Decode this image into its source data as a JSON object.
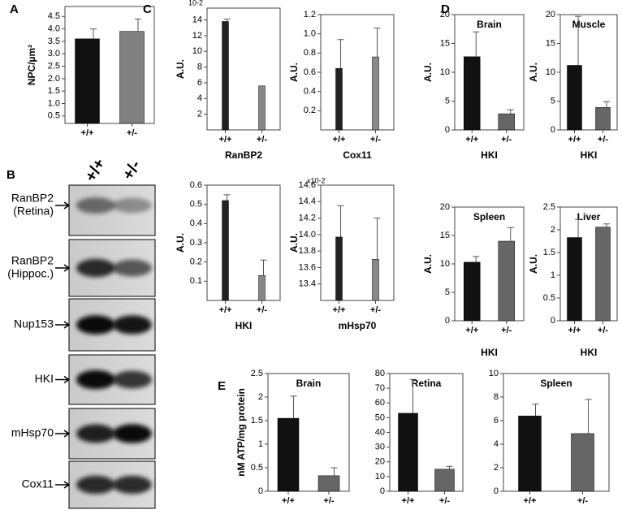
{
  "chart_data": [
    {
      "type": "bar",
      "panel": "A",
      "ylabel": "NPC/µm²",
      "categories": [
        "+/+",
        "+/-"
      ],
      "values": [
        3.6,
        3.9
      ],
      "errors": [
        0.4,
        0.5
      ],
      "colors": [
        "#111111",
        "#808080"
      ],
      "ylim": [
        0.2,
        4.9
      ],
      "yticks": [
        0.5,
        {
          "value": 1,
          "label": "1.0"
        },
        1.5,
        {
          "value": 2,
          "label": "2.0"
        },
        2.5,
        {
          "value": 3,
          "label": "3.0"
        },
        3.5,
        {
          "value": 4,
          "label": "4.0"
        },
        4.5
      ]
    },
    {
      "type": "bar",
      "panel": "C",
      "multiplier": "10-2",
      "ylabel": "A.U.",
      "xlabel": "RanBP2",
      "categories": [
        "+/+",
        "+/-"
      ],
      "values": [
        13.8,
        5.6
      ],
      "errors": [
        0.3,
        0
      ],
      "colors": [
        "#222222",
        "#888888"
      ],
      "ylim": [
        0,
        15.5
      ],
      "yticks": [
        2,
        4,
        6,
        8,
        10,
        12,
        14
      ]
    },
    {
      "type": "bar",
      "ylabel": "A.U.",
      "xlabel": "Cox11",
      "categories": [
        "+/+",
        "+/-"
      ],
      "values": [
        0.64,
        0.76
      ],
      "errors": [
        0.3,
        0.3
      ],
      "colors": [
        "#222222",
        "#888888"
      ],
      "ylim": [
        0,
        1.2
      ],
      "yticks": [
        0.2,
        0.4,
        0.6,
        0.8,
        {
          "value": 1,
          "label": "1.0"
        },
        1.2
      ]
    },
    {
      "type": "bar",
      "ylabel": "A.U.",
      "xlabel": "HKI",
      "categories": [
        "+/+",
        "+/-"
      ],
      "values": [
        0.52,
        0.13
      ],
      "errors": [
        0.03,
        0.08
      ],
      "colors": [
        "#222222",
        "#888888"
      ],
      "ylim": [
        0,
        0.6
      ],
      "yticks": [
        0.1,
        0.2,
        0.3,
        0.4,
        0.5,
        0.6
      ]
    },
    {
      "type": "bar",
      "multiplier": "x10-2",
      "ylabel": "A.U.",
      "xlabel": "mHsp70",
      "categories": [
        "+/+",
        "+/-"
      ],
      "values": [
        13.97,
        13.7
      ],
      "errors": [
        0.38,
        0.5
      ],
      "colors": [
        "#222222",
        "#888888"
      ],
      "ylim": [
        13.2,
        14.6
      ],
      "yticks": [
        13.4,
        13.6,
        13.8,
        {
          "value": 14,
          "label": "14.0"
        },
        14.2,
        14.4,
        14.6
      ]
    },
    {
      "type": "bar",
      "panel": "D",
      "title": "Brain",
      "ylabel": "A.U.",
      "xlabel": "HKI",
      "categories": [
        "+/+",
        "+/-"
      ],
      "values": [
        12.7,
        2.8
      ],
      "errors": [
        4.3,
        0.7
      ],
      "colors": [
        "#111111",
        "#666666"
      ],
      "ylim": [
        0,
        20
      ],
      "yticks": [
        0,
        5,
        10,
        15,
        20
      ]
    },
    {
      "type": "bar",
      "title": "Muscle",
      "ylabel": "A.U.",
      "xlabel": "HKI",
      "categories": [
        "+/+",
        "+/-"
      ],
      "values": [
        11.2,
        3.9
      ],
      "errors": [
        8.5,
        1
      ],
      "colors": [
        "#111111",
        "#666666"
      ],
      "ylim": [
        0,
        20
      ],
      "yticks": [
        0,
        5,
        10,
        15,
        20
      ]
    },
    {
      "type": "bar",
      "title": "Spleen",
      "ylabel": "A.U.",
      "xlabel": "HKI",
      "categories": [
        "+/+",
        "+/-"
      ],
      "values": [
        10.3,
        14
      ],
      "errors": [
        1,
        2.4
      ],
      "colors": [
        "#111111",
        "#666666"
      ],
      "ylim": [
        0,
        20
      ],
      "yticks": [
        0,
        5,
        10,
        15,
        20
      ]
    },
    {
      "type": "bar",
      "title": "Liver",
      "ylabel": "A.U.",
      "xlabel": "HKI",
      "categories": [
        "+/+",
        "+/-"
      ],
      "values": [
        1.83,
        2.06
      ],
      "errors": [
        0.4,
        0.07
      ],
      "colors": [
        "#111111",
        "#666666"
      ],
      "ylim": [
        0,
        2.5
      ],
      "yticks": [
        0,
        0.5,
        1,
        1.5,
        2,
        2.5
      ]
    },
    {
      "type": "bar",
      "panel": "E",
      "title": "Brain",
      "ylabel": "nM ATP/mg protein",
      "categories": [
        "+/+",
        "+/-"
      ],
      "values": [
        1.55,
        0.33
      ],
      "errors": [
        0.47,
        0.17
      ],
      "colors": [
        "#111111",
        "#666666"
      ],
      "ylim": [
        0,
        2.5
      ],
      "yticks": [
        0,
        0.5,
        1,
        1.5,
        2,
        2.5
      ]
    },
    {
      "type": "bar",
      "title": "Retina",
      "categories": [
        "+/+",
        "+/-"
      ],
      "values": [
        53,
        15
      ],
      "errors": [
        23,
        2
      ],
      "colors": [
        "#111111",
        "#666666"
      ],
      "ylim": [
        0,
        80
      ],
      "yticks": [
        0,
        10,
        20,
        30,
        40,
        50,
        60,
        70,
        80
      ]
    },
    {
      "type": "bar",
      "title": "Spleen",
      "categories": [
        "+/+",
        "+/-"
      ],
      "values": [
        6.4,
        4.9
      ],
      "errors": [
        1,
        2.9
      ],
      "colors": [
        "#111111",
        "#666666"
      ],
      "ylim": [
        0,
        10
      ],
      "yticks": [
        0,
        2,
        4,
        6,
        8,
        10
      ]
    }
  ],
  "blot": {
    "panel": "B",
    "lanes": [
      "+/+",
      "+/-"
    ],
    "rows": [
      [
        "RanBP2",
        "(Retina)"
      ],
      [
        "RanBP2",
        "(Hippoc.)"
      ],
      [
        "Nup153"
      ],
      [
        "HKI"
      ],
      [
        "mHsp70"
      ],
      [
        "Cox11"
      ]
    ]
  }
}
